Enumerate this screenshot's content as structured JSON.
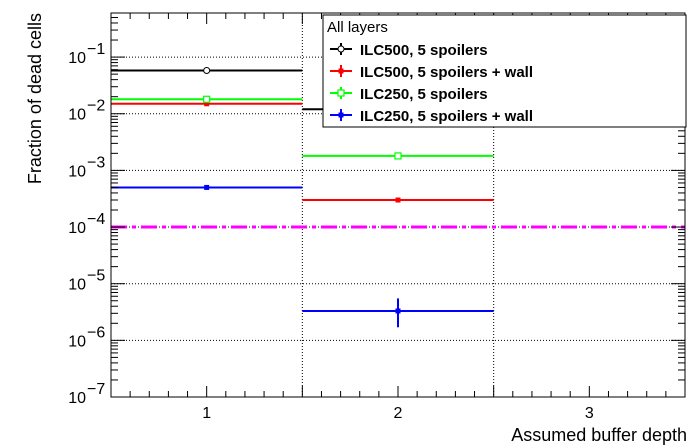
{
  "chart_data": {
    "type": "histogram",
    "title": "",
    "xlabel": "Assumed buffer depth",
    "ylabel": "Fraction of dead cells",
    "x_scale": "linear",
    "y_scale": "log",
    "xlim": [
      0.5,
      3.5
    ],
    "ylim": [
      1e-07,
      0.6
    ],
    "grid": true,
    "x_ticks": [
      {
        "value": 1,
        "label": "1"
      },
      {
        "value": 2,
        "label": "2"
      },
      {
        "value": 3,
        "label": "3"
      }
    ],
    "y_ticks": [
      {
        "value": 1e-07,
        "mantissa": "10",
        "exp": "−7"
      },
      {
        "value": 1e-06,
        "mantissa": "10",
        "exp": "−6"
      },
      {
        "value": 1e-05,
        "mantissa": "10",
        "exp": "−5"
      },
      {
        "value": 0.0001,
        "mantissa": "10",
        "exp": "−4"
      },
      {
        "value": 0.001,
        "mantissa": "10",
        "exp": "−3"
      },
      {
        "value": 0.01,
        "mantissa": "10",
        "exp": "−2"
      },
      {
        "value": 0.1,
        "mantissa": "10",
        "exp": "−1"
      }
    ],
    "legend": {
      "header": "All layers",
      "position": "top-right"
    },
    "series": [
      {
        "name": "ILC500, 5 spoilers",
        "color": "#000000",
        "marker": "open-circle",
        "bins": [
          {
            "x": 1,
            "xlo": 0.5,
            "xhi": 1.5,
            "y": 0.058
          },
          {
            "x": 2,
            "xlo": 1.5,
            "xhi": 2.5,
            "y": 0.012
          }
        ]
      },
      {
        "name": "ILC500, 5 spoilers + wall",
        "color": "#ff0000",
        "marker": "filled-square",
        "bins": [
          {
            "x": 1,
            "xlo": 0.5,
            "xhi": 1.5,
            "y": 0.015
          },
          {
            "x": 2,
            "xlo": 1.5,
            "xhi": 2.5,
            "y": 0.0003
          }
        ]
      },
      {
        "name": "ILC250, 5 spoilers",
        "color": "#00ff00",
        "marker": "open-square",
        "bins": [
          {
            "x": 1,
            "xlo": 0.5,
            "xhi": 1.5,
            "y": 0.018
          },
          {
            "x": 2,
            "xlo": 1.5,
            "xhi": 2.5,
            "y": 0.0018
          }
        ]
      },
      {
        "name": "ILC250, 5 spoilers + wall",
        "color": "#0000ff",
        "marker": "filled-square",
        "bins": [
          {
            "x": 1,
            "xlo": 0.5,
            "xhi": 1.5,
            "y": 0.0005
          },
          {
            "x": 2,
            "xlo": 1.5,
            "xhi": 2.5,
            "y": 3.3e-06,
            "err_lo": 1.7e-06,
            "err_hi": 5.5e-06
          }
        ]
      }
    ],
    "reference_line": {
      "y": 0.0001,
      "color": "#ff00ff",
      "style": "dashed"
    },
    "bin_edges": [
      1.5,
      2.5
    ]
  }
}
